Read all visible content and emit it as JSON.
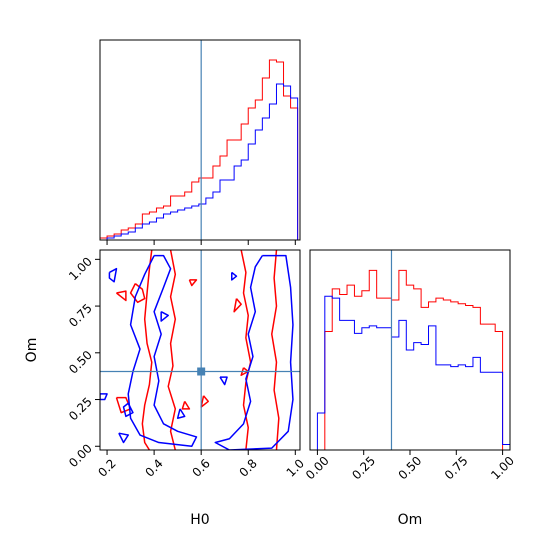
{
  "chart_data": {
    "type": "corner",
    "truth": {
      "H0": 0.6,
      "Om": 0.4
    },
    "colors": {
      "red": "#ff0000",
      "blue": "#0000ff",
      "truth": "#4682b4"
    },
    "series": [
      {
        "color": "red"
      },
      {
        "color": "blue"
      }
    ],
    "panels": [
      {
        "id": "hist-H0",
        "type": "step",
        "xlim": [
          0.17,
          1.02
        ],
        "x_ticks": [
          0.2,
          0.4,
          0.6,
          0.8,
          1.0
        ],
        "x_tick_labels": [],
        "bins": [
          0.17,
          0.2,
          0.23,
          0.26,
          0.29,
          0.32,
          0.35,
          0.38,
          0.41,
          0.44,
          0.47,
          0.5,
          0.53,
          0.56,
          0.59,
          0.62,
          0.65,
          0.68,
          0.71,
          0.74,
          0.77,
          0.8,
          0.83,
          0.86,
          0.89,
          0.92,
          0.95,
          0.98,
          1.01
        ],
        "red": [
          1,
          2,
          3,
          5,
          6,
          8,
          13,
          14,
          16,
          17,
          22,
          22,
          24,
          29,
          31,
          31,
          37,
          42,
          50,
          50,
          58,
          66,
          70,
          81,
          90,
          89,
          72,
          66
        ],
        "blue": [
          0,
          1,
          2,
          3,
          4,
          6,
          8,
          9,
          11,
          13,
          14,
          15,
          16,
          17,
          18,
          21,
          24,
          30,
          30,
          37,
          40,
          48,
          55,
          61,
          68,
          78,
          77,
          71
        ],
        "ymax": 100
      },
      {
        "id": "contour-H0-Om",
        "type": "contour",
        "xlim": [
          0.17,
          1.02
        ],
        "ylim": [
          -0.02,
          1.05
        ],
        "x_ticks": [
          0.2,
          0.4,
          0.6,
          0.8,
          1.0
        ],
        "x_tick_labels": [
          "0.2",
          "0.4",
          "0.6",
          "0.8",
          "1.0"
        ],
        "y_ticks": [
          0.0,
          0.25,
          0.5,
          0.75,
          1.0
        ],
        "y_tick_labels": [
          "0.00",
          "0.25",
          "0.50",
          "0.75",
          "1.00"
        ],
        "xlabel": "H0",
        "ylabel": "Om",
        "red_contours": [
          [
            [
              0.39,
              1.05
            ],
            [
              0.38,
              0.95
            ],
            [
              0.37,
              0.82
            ],
            [
              0.36,
              0.68
            ],
            [
              0.37,
              0.55
            ],
            [
              0.39,
              0.45
            ],
            [
              0.38,
              0.33
            ],
            [
              0.36,
              0.22
            ],
            [
              0.35,
              0.12
            ],
            [
              0.36,
              0.02
            ],
            [
              0.38,
              -0.02
            ]
          ],
          [
            [
              0.47,
              1.05
            ],
            [
              0.49,
              0.92
            ],
            [
              0.47,
              0.8
            ],
            [
              0.49,
              0.68
            ],
            [
              0.47,
              0.55
            ],
            [
              0.48,
              0.43
            ],
            [
              0.46,
              0.32
            ],
            [
              0.49,
              0.2
            ],
            [
              0.47,
              0.08
            ],
            [
              0.49,
              -0.02
            ]
          ],
          [
            [
              0.77,
              1.05
            ],
            [
              0.79,
              0.93
            ],
            [
              0.78,
              0.82
            ],
            [
              0.8,
              0.7
            ],
            [
              0.79,
              0.58
            ],
            [
              0.81,
              0.45
            ],
            [
              0.79,
              0.34
            ],
            [
              0.78,
              0.22
            ],
            [
              0.8,
              0.1
            ],
            [
              0.79,
              -0.02
            ]
          ],
          [
            [
              0.92,
              1.05
            ],
            [
              0.91,
              0.9
            ],
            [
              0.92,
              0.75
            ],
            [
              0.9,
              0.6
            ],
            [
              0.92,
              0.45
            ],
            [
              0.91,
              0.3
            ],
            [
              0.93,
              0.15
            ],
            [
              0.92,
              -0.02
            ]
          ],
          [
            [
              0.32,
              0.87
            ],
            [
              0.35,
              0.84
            ],
            [
              0.36,
              0.79
            ],
            [
              0.33,
              0.77
            ],
            [
              0.3,
              0.82
            ],
            [
              0.32,
              0.87
            ]
          ],
          [
            [
              0.24,
              0.82
            ],
            [
              0.28,
              0.83
            ],
            [
              0.28,
              0.78
            ],
            [
              0.24,
              0.82
            ]
          ],
          [
            [
              0.75,
              0.79
            ],
            [
              0.77,
              0.76
            ],
            [
              0.74,
              0.72
            ],
            [
              0.75,
              0.79
            ]
          ],
          [
            [
              0.61,
              0.27
            ],
            [
              0.63,
              0.24
            ],
            [
              0.6,
              0.21
            ],
            [
              0.61,
              0.27
            ]
          ],
          [
            [
              0.53,
              0.24
            ],
            [
              0.55,
              0.2
            ],
            [
              0.52,
              0.2
            ],
            [
              0.53,
              0.24
            ]
          ],
          [
            [
              0.24,
              0.26
            ],
            [
              0.28,
              0.26
            ],
            [
              0.3,
              0.2
            ],
            [
              0.26,
              0.18
            ],
            [
              0.24,
              0.26
            ]
          ],
          [
            [
              0.55,
              0.89
            ],
            [
              0.58,
              0.89
            ],
            [
              0.56,
              0.86
            ],
            [
              0.55,
              0.89
            ]
          ],
          [
            [
              0.78,
              0.42
            ],
            [
              0.8,
              0.4
            ],
            [
              0.77,
              0.38
            ],
            [
              0.78,
              0.42
            ]
          ]
        ],
        "blue_contours": [
          [
            [
              0.4,
              1.02
            ],
            [
              0.36,
              0.92
            ],
            [
              0.32,
              0.8
            ],
            [
              0.3,
              0.65
            ],
            [
              0.34,
              0.52
            ],
            [
              0.31,
              0.4
            ],
            [
              0.29,
              0.28
            ],
            [
              0.3,
              0.15
            ],
            [
              0.34,
              0.06
            ],
            [
              0.42,
              0.02
            ],
            [
              0.56,
              0.0
            ],
            [
              0.58,
              0.05
            ],
            [
              0.5,
              0.08
            ],
            [
              0.44,
              0.12
            ],
            [
              0.4,
              0.22
            ],
            [
              0.42,
              0.35
            ],
            [
              0.4,
              0.48
            ],
            [
              0.43,
              0.6
            ],
            [
              0.4,
              0.72
            ],
            [
              0.44,
              0.85
            ],
            [
              0.47,
              0.95
            ],
            [
              0.44,
              1.02
            ],
            [
              0.4,
              1.02
            ]
          ],
          [
            [
              0.86,
              1.02
            ],
            [
              0.83,
              0.96
            ],
            [
              0.81,
              0.85
            ],
            [
              0.83,
              0.72
            ],
            [
              0.8,
              0.6
            ],
            [
              0.82,
              0.48
            ],
            [
              0.79,
              0.36
            ],
            [
              0.81,
              0.24
            ],
            [
              0.78,
              0.12
            ],
            [
              0.72,
              0.04
            ],
            [
              0.66,
              0.02
            ],
            [
              0.72,
              -0.02
            ],
            [
              0.9,
              -0.01
            ],
            [
              0.97,
              0.08
            ],
            [
              0.99,
              0.25
            ],
            [
              0.98,
              0.45
            ],
            [
              0.99,
              0.65
            ],
            [
              0.98,
              0.85
            ],
            [
              0.96,
              1.02
            ],
            [
              0.86,
              1.02
            ]
          ],
          [
            [
              0.21,
              0.93
            ],
            [
              0.24,
              0.95
            ],
            [
              0.23,
              0.88
            ],
            [
              0.21,
              0.9
            ],
            [
              0.21,
              0.93
            ]
          ],
          [
            [
              0.73,
              0.93
            ],
            [
              0.75,
              0.91
            ],
            [
              0.73,
              0.89
            ],
            [
              0.73,
              0.93
            ]
          ],
          [
            [
              0.17,
              0.28
            ],
            [
              0.2,
              0.28
            ],
            [
              0.19,
              0.25
            ],
            [
              0.17,
              0.25
            ],
            [
              0.17,
              0.28
            ]
          ],
          [
            [
              0.29,
              0.23
            ],
            [
              0.31,
              0.18
            ],
            [
              0.28,
              0.16
            ],
            [
              0.27,
              0.21
            ],
            [
              0.29,
              0.23
            ]
          ],
          [
            [
              0.25,
              0.07
            ],
            [
              0.29,
              0.06
            ],
            [
              0.27,
              0.02
            ],
            [
              0.25,
              0.07
            ]
          ],
          [
            [
              0.51,
              0.2
            ],
            [
              0.53,
              0.16
            ],
            [
              0.5,
              0.15
            ],
            [
              0.51,
              0.2
            ]
          ],
          [
            [
              0.68,
              0.37
            ],
            [
              0.71,
              0.37
            ],
            [
              0.7,
              0.33
            ],
            [
              0.68,
              0.37
            ]
          ],
          [
            [
              0.43,
              0.72
            ],
            [
              0.46,
              0.7
            ],
            [
              0.43,
              0.67
            ],
            [
              0.43,
              0.72
            ]
          ]
        ]
      },
      {
        "id": "hist-Om",
        "type": "step",
        "xlim": [
          -0.04,
          1.04
        ],
        "x_ticks": [
          0.0,
          0.25,
          0.5,
          0.75,
          1.0
        ],
        "x_tick_labels": [
          "0.00",
          "0.25",
          "0.50",
          "0.75",
          "1.00"
        ],
        "xlabel": "Om",
        "bins": [
          -0.04,
          0.0,
          0.04,
          0.08,
          0.12,
          0.16,
          0.2,
          0.24,
          0.28,
          0.32,
          0.36,
          0.4,
          0.44,
          0.48,
          0.52,
          0.56,
          0.6,
          0.64,
          0.68,
          0.72,
          0.76,
          0.8,
          0.84,
          0.88,
          0.92,
          0.96,
          1.0,
          1.04
        ],
        "red": [
          0,
          0,
          64,
          87,
          84,
          89,
          83,
          86,
          97,
          82,
          82,
          81,
          97,
          89,
          87,
          77,
          80,
          82,
          81,
          80,
          79,
          78,
          77,
          68,
          68,
          64,
          0
        ],
        "blue": [
          0,
          20,
          83,
          82,
          70,
          70,
          63,
          66,
          67,
          66,
          66,
          61,
          70,
          54,
          58,
          57,
          67,
          46,
          46,
          45,
          46,
          45,
          50,
          42,
          42,
          42,
          3
        ],
        "ymax": 108
      }
    ]
  }
}
